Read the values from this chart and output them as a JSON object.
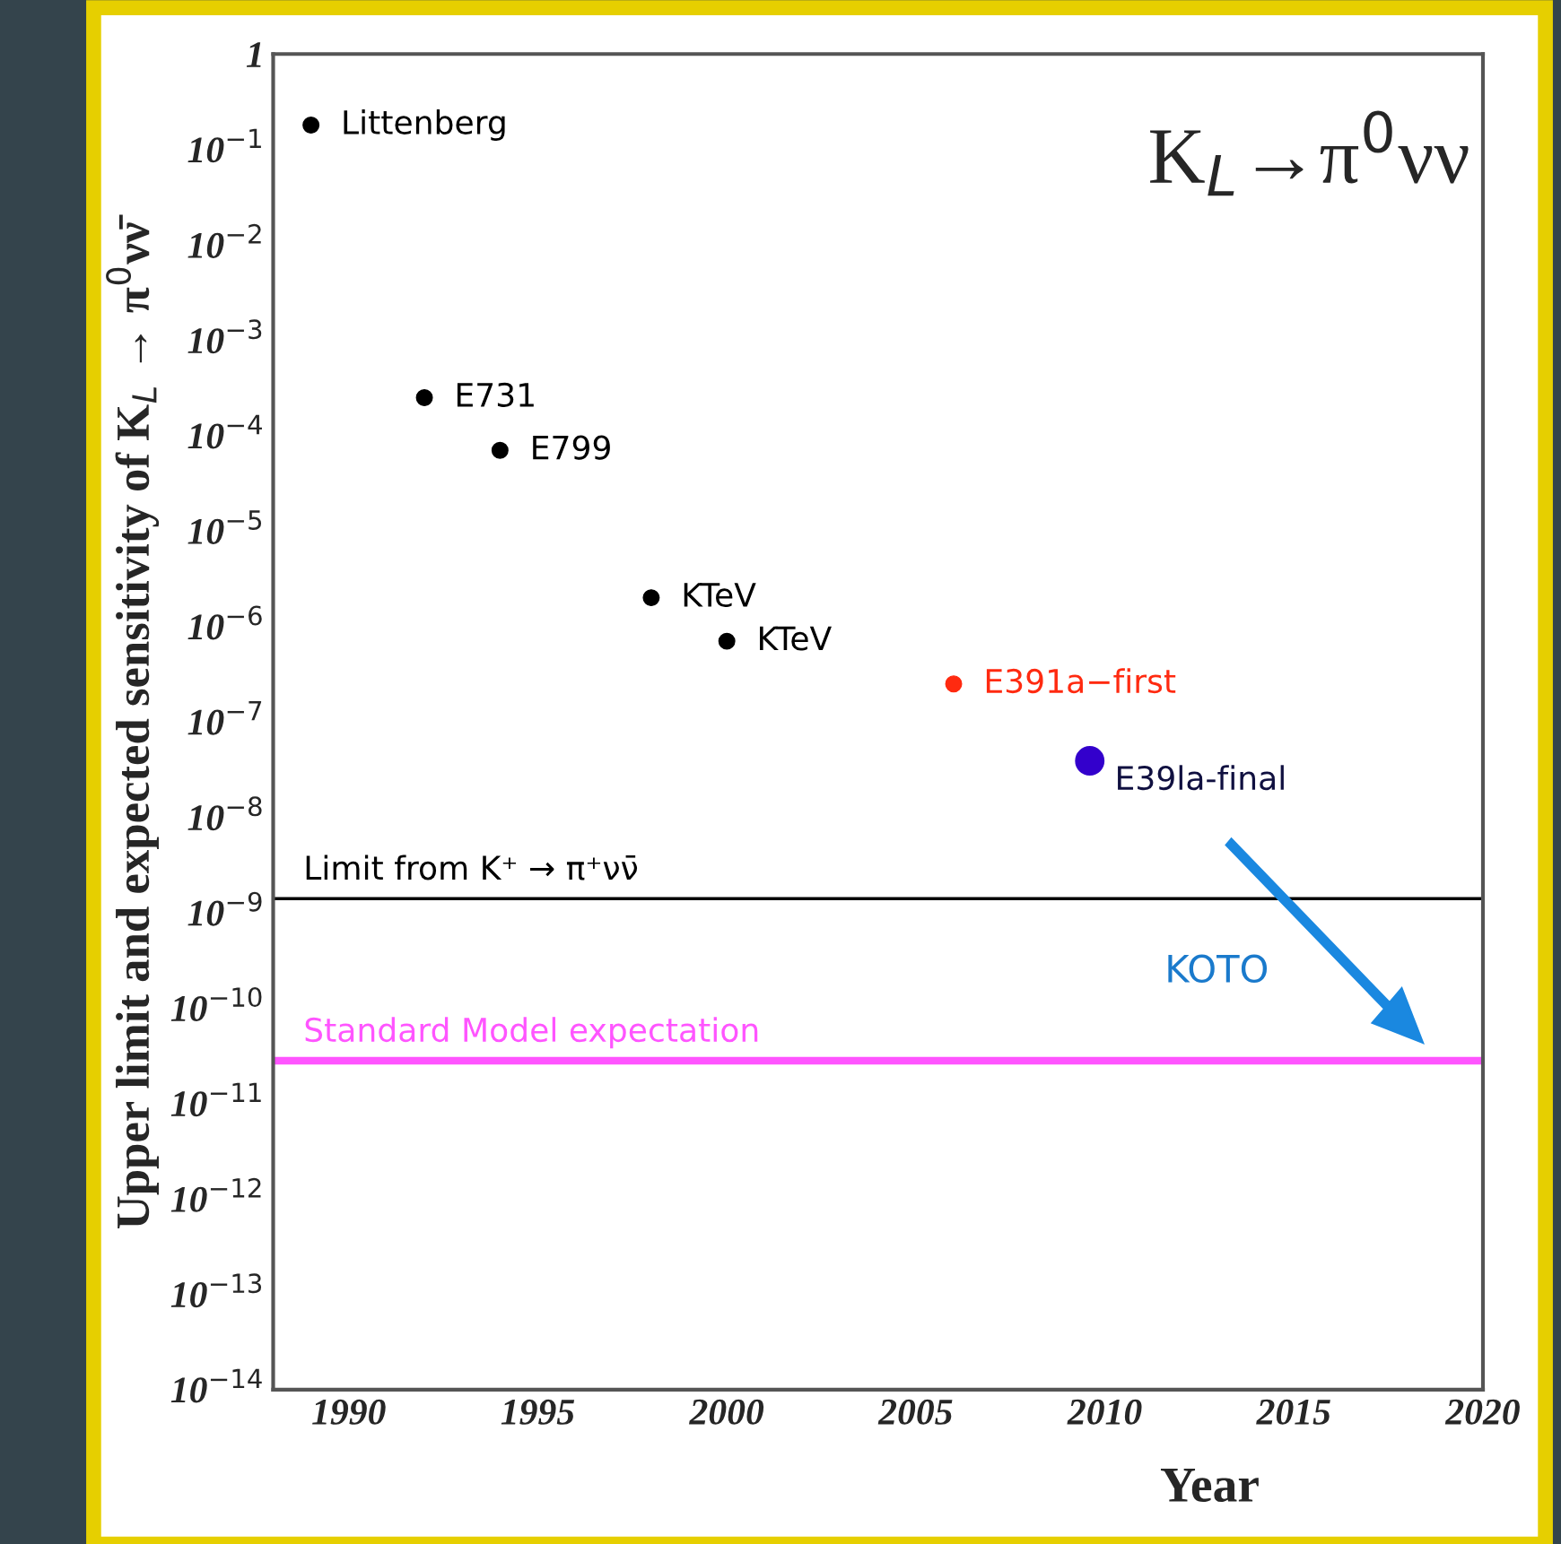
{
  "chart_data": {
    "type": "scatter",
    "title": "K$_{L}$→π$^{0}$νν",
    "xlabel": "Year",
    "ylabel": "Upper limit and expected sensitivity of K$_{L}$ → π$^{0}$νν̄",
    "log": "y",
    "xlim": [
      1988,
      2020
    ],
    "xticks": [
      1990,
      1995,
      2000,
      2005,
      2010,
      2015,
      2020
    ],
    "ylim": [
      1e-14,
      1
    ],
    "yticks": [
      {
        "value": 1e-14,
        "label": "10$^{−14}$"
      },
      {
        "value": 1e-13,
        "label": "10$^{−13}$"
      },
      {
        "value": 1e-12,
        "label": "10$^{−12}$"
      },
      {
        "value": 1e-11,
        "label": "10$^{−11}$"
      },
      {
        "value": 1e-10,
        "label": "10$^{−10}$"
      },
      {
        "value": 1e-09,
        "label": "10$^{−9}$"
      },
      {
        "value": 1e-08,
        "label": "10$^{−8}$"
      },
      {
        "value": 1e-07,
        "label": "10$^{−7}$"
      },
      {
        "value": 1e-06,
        "label": "10$^{−6}$"
      },
      {
        "value": 1e-05,
        "label": "10$^{−5}$"
      },
      {
        "value": 0.0001,
        "label": "10$^{−4}$"
      },
      {
        "value": 0.001,
        "label": "10$^{−3}$"
      },
      {
        "value": 0.01,
        "label": "10$^{−2}$"
      },
      {
        "value": 0.1,
        "label": "10$^{−1}$"
      },
      {
        "value": 1,
        "label": "1"
      }
    ],
    "series": [
      {
        "name": "Littenberg",
        "color": "#000000",
        "x": [
          1989
        ],
        "values": [
          0.18
        ]
      },
      {
        "name": "E731",
        "color": "#000000",
        "x": [
          1992
        ],
        "values": [
          0.00025
        ]
      },
      {
        "name": "E799",
        "color": "#000000",
        "x": [
          1994
        ],
        "values": [
          7e-05
        ]
      },
      {
        "name": "KTeV",
        "color": "#000000",
        "x": [
          1998
        ],
        "values": [
          2e-06
        ]
      },
      {
        "name": "KTeV",
        "color": "#000000",
        "x": [
          2000
        ],
        "values": [
          7e-07
        ]
      },
      {
        "name": "E391a−first",
        "color": "#ff2a10",
        "x": [
          2006
        ],
        "values": [
          2.5e-07
        ]
      },
      {
        "name": "E39la-final",
        "color": "#3300cc",
        "x": [
          2009.6
        ],
        "values": [
          3.9e-08
        ]
      }
    ],
    "ref_lines": [
      {
        "axis": "y",
        "value": 1.4e-09,
        "label": "Limit from K⁺ → π⁺νν̄",
        "color": "#000000"
      },
      {
        "axis": "y",
        "value": 2.8e-11,
        "label": "Standard Model expectation",
        "color": "#ff55ff"
      }
    ],
    "annotations": [
      "KOTO"
    ],
    "marker": "circle",
    "grid": false,
    "legend": false
  }
}
